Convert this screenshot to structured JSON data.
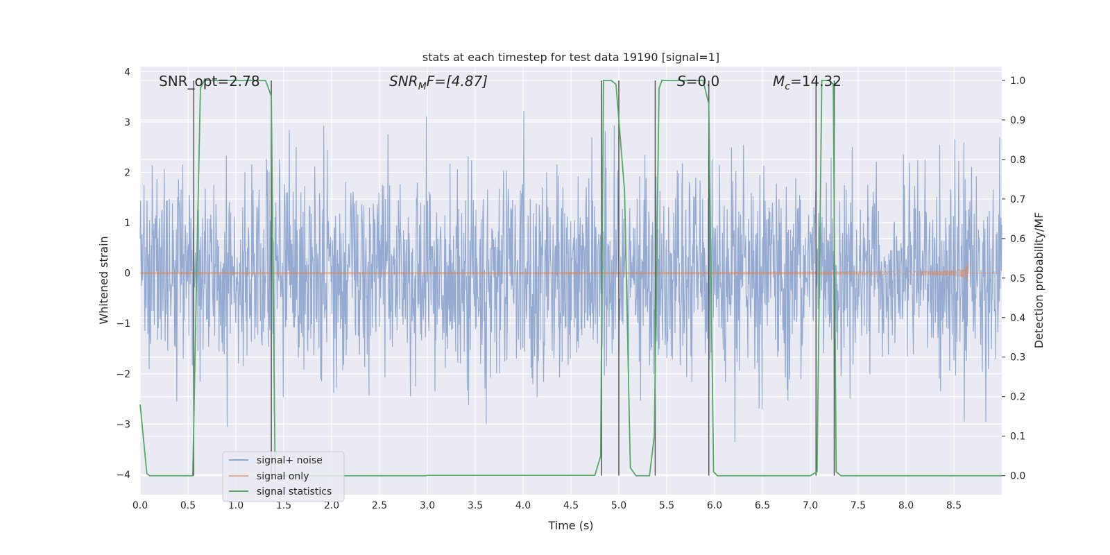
{
  "chart_data": {
    "type": "line",
    "title": "stats at each timestep for test data 19190 [signal=1]",
    "xlabel": "Time (s)",
    "ylabel": "Whitened strain",
    "y2label": "Detection probability/MF",
    "xlim": [
      0.0,
      9.0
    ],
    "ylim": [
      -4.4,
      4.1
    ],
    "y2lim": [
      -0.048,
      1.035
    ],
    "xticks": [
      "0.0",
      "0.5",
      "1.0",
      "1.5",
      "2.0",
      "2.5",
      "3.0",
      "3.5",
      "4.0",
      "4.5",
      "5.0",
      "5.5",
      "6.0",
      "6.5",
      "7.0",
      "7.5",
      "8.0",
      "8.5"
    ],
    "yticks": [
      "4",
      "3",
      "2",
      "1",
      "0",
      "−1",
      "−2",
      "−3",
      "−4"
    ],
    "y2ticks": [
      "1.0",
      "0.9",
      "0.8",
      "0.7",
      "0.6",
      "0.5",
      "0.4",
      "0.3",
      "0.2",
      "0.1",
      "0.0"
    ],
    "grid": true,
    "annotations": {
      "snr_opt": "SNR_opt=2.78",
      "snr_mf_prefix": "SNR",
      "snr_mf_sub": "M",
      "snr_mf_suffix": "F=[4.87]",
      "s_var": "S",
      "s_val": "=0.0",
      "mc_var": "M",
      "mc_sub": "c",
      "mc_val": "=14.32"
    },
    "legend": {
      "placement": "lower-left",
      "entries": [
        {
          "label": "signal+ noise",
          "color": "#8fa6cf"
        },
        {
          "label": "signal only",
          "color": "#dd8452"
        },
        {
          "label": "signal statistics",
          "color": "#55a868"
        }
      ]
    },
    "series": [
      {
        "name": "signal statistics",
        "axis": "right",
        "color": "#55a868",
        "x": [
          0.0,
          0.07,
          0.1,
          0.55,
          0.59,
          0.63,
          0.67,
          1.31,
          1.37,
          1.41,
          1.45,
          1.5,
          2.98,
          3.0,
          4.5,
          4.75,
          4.81,
          4.84,
          4.92,
          4.97,
          5.06,
          5.12,
          5.18,
          5.27,
          5.32,
          5.37,
          5.42,
          5.45,
          5.88,
          5.94,
          5.99,
          6.03,
          6.07,
          7.0,
          7.07,
          7.12,
          7.2,
          7.24,
          7.27,
          7.32,
          7.35,
          7.42,
          9.0
        ],
        "values": [
          0.18,
          0.005,
          0.0,
          0.0,
          0.51,
          0.98,
          1.0,
          1.0,
          0.96,
          0.0,
          0.0,
          0.0,
          0.0,
          0.001,
          0.001,
          0.001,
          0.05,
          1.0,
          1.0,
          0.99,
          0.72,
          0.02,
          0.0,
          0.0,
          0.0,
          0.1,
          0.98,
          1.0,
          1.0,
          0.94,
          0.01,
          0.0,
          0.0,
          0.0,
          0.01,
          1.0,
          1.0,
          0.99,
          0.01,
          0.0,
          0.0,
          0.0,
          0.0
        ]
      },
      {
        "name": "signal+ noise",
        "axis": "left",
        "color": "#8fa6cf",
        "kind": "noise",
        "seed": 19190,
        "samples": 2000,
        "sigma": 1.02
      },
      {
        "name": "signal only",
        "axis": "left",
        "color": "#dd8452",
        "kind": "chirp",
        "end_time": 8.65,
        "peak_amplitude": 0.48
      }
    ],
    "threshold_markers": {
      "color": "#555555",
      "x": [
        0.56,
        1.37,
        4.82,
        5.0,
        5.38,
        5.94,
        7.06,
        7.25
      ]
    }
  }
}
